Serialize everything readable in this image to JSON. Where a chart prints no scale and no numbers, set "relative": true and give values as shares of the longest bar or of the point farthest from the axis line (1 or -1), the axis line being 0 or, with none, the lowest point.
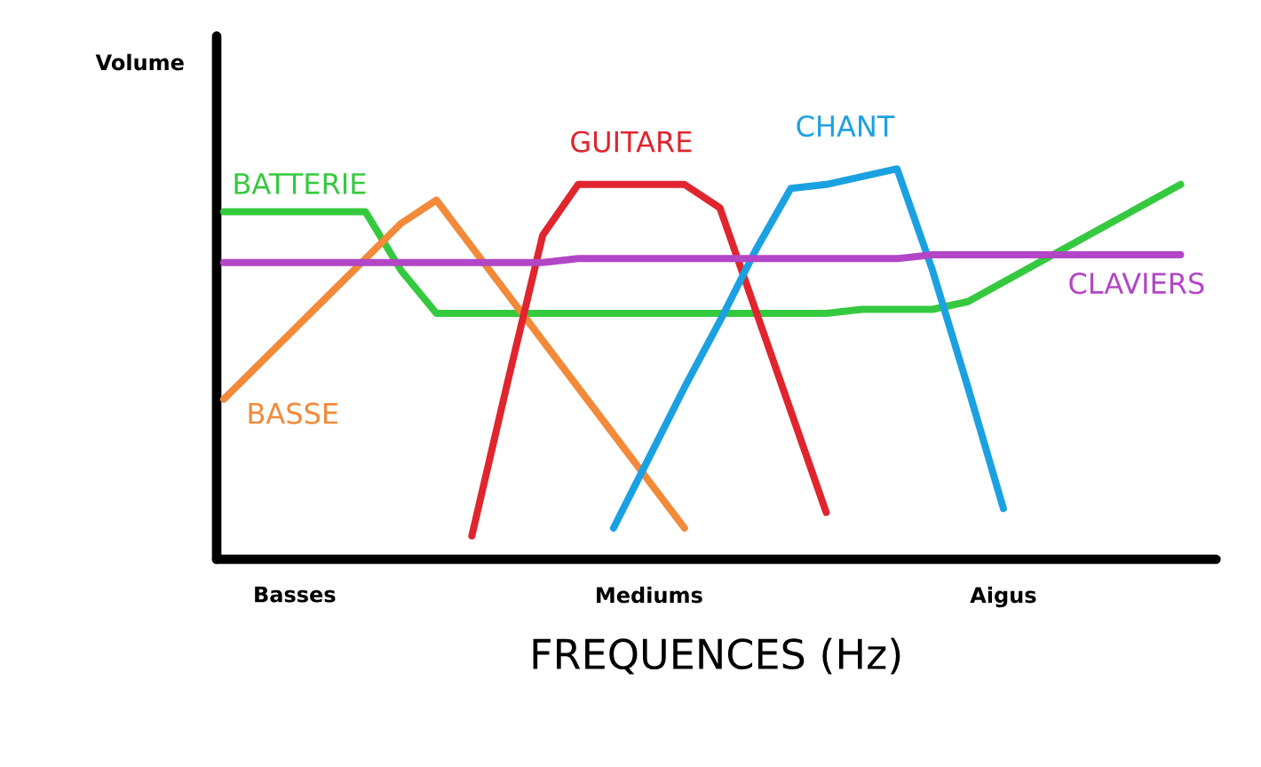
{
  "chart_data": {
    "type": "line",
    "relative": true,
    "xlabel": "FREQUENCES (Hz)",
    "ylabel": "Volume",
    "categories": [
      null,
      null,
      "Basses",
      null,
      null,
      null,
      null,
      null,
      null,
      null,
      null,
      null,
      "Mediums",
      null,
      null,
      null,
      null,
      null,
      null,
      null,
      null,
      null,
      "Aigus",
      null,
      null,
      null,
      null,
      null,
      null
    ],
    "tick_labels": "x",
    "marker": "none",
    "line_style": "solid",
    "series": [
      {
        "name": "BATTERIE",
        "color": "#35c93f",
        "values": [
          0.89,
          0.89,
          0.89,
          0.89,
          0.89,
          0.74,
          0.63,
          0.63,
          0.63,
          0.63,
          0.63,
          0.63,
          0.63,
          0.63,
          0.63,
          0.63,
          0.63,
          0.63,
          0.64,
          0.64,
          0.64,
          0.66,
          0.71,
          0.76,
          0.81,
          0.86,
          0.91,
          0.96,
          null
        ]
      },
      {
        "name": "BASSE",
        "color": "#f28a3a",
        "values": [
          0.41,
          0.5,
          0.59,
          0.68,
          0.77,
          0.86,
          0.92,
          0.8,
          0.68,
          0.56,
          0.44,
          0.32,
          0.2,
          0.08,
          null,
          null,
          null,
          null,
          null,
          null,
          null,
          null,
          null,
          null,
          null,
          null,
          null,
          null,
          null
        ]
      },
      {
        "name": "GUITARE",
        "color": "#e0252e",
        "values": [
          null,
          null,
          null,
          null,
          null,
          null,
          null,
          0.06,
          0.45,
          0.83,
          0.96,
          0.96,
          0.96,
          0.96,
          0.9,
          0.64,
          0.38,
          0.12,
          null,
          null,
          null,
          null,
          null,
          null,
          null,
          null,
          null,
          null,
          null
        ]
      },
      {
        "name": "CHANT",
        "color": "#1ba1e2",
        "values": [
          null,
          null,
          null,
          null,
          null,
          null,
          null,
          null,
          null,
          null,
          null,
          0.08,
          0.26,
          0.44,
          0.61,
          0.79,
          0.95,
          0.96,
          0.98,
          1.0,
          0.74,
          0.44,
          0.13,
          null,
          null,
          null,
          null,
          null,
          null
        ]
      },
      {
        "name": "CLAVIERS",
        "color": "#b246c6",
        "values": [
          0.76,
          0.76,
          0.76,
          0.76,
          0.76,
          0.76,
          0.76,
          0.76,
          0.76,
          0.76,
          0.77,
          0.77,
          0.77,
          0.77,
          0.77,
          0.77,
          0.77,
          0.77,
          0.77,
          0.77,
          0.78,
          0.78,
          0.78,
          0.78,
          0.78,
          0.78,
          0.78,
          0.78,
          null
        ]
      }
    ]
  }
}
